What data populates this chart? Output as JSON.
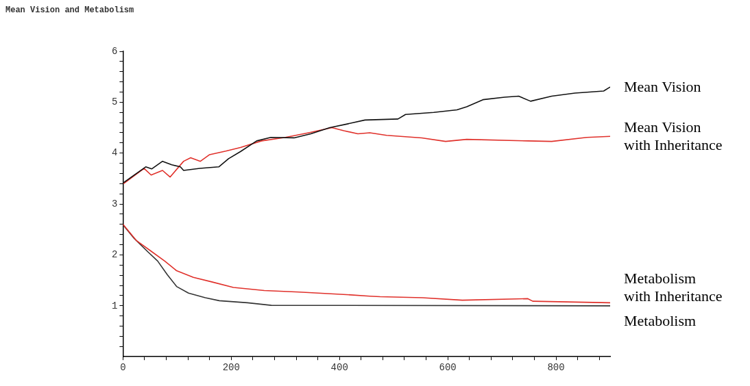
{
  "chart_data": {
    "type": "line",
    "title": "Mean Vision and Metabolism",
    "xlim": [
      0,
      900
    ],
    "xticks": [
      0,
      {
        "value": 40,
        "label": null
      },
      {
        "value": 80,
        "label": null
      },
      {
        "value": 120,
        "label": null
      },
      {
        "value": 160,
        "label": null
      },
      200,
      {
        "value": 240,
        "label": null
      },
      {
        "value": 280,
        "label": null
      },
      {
        "value": 320,
        "label": null
      },
      {
        "value": 360,
        "label": null
      },
      400,
      {
        "value": 440,
        "label": null
      },
      {
        "value": 480,
        "label": null
      },
      {
        "value": 520,
        "label": null
      },
      {
        "value": 560,
        "label": null
      },
      600,
      {
        "value": 640,
        "label": null
      },
      {
        "value": 680,
        "label": null
      },
      {
        "value": 720,
        "label": null
      },
      {
        "value": 760,
        "label": null
      },
      800,
      {
        "value": 840,
        "label": null
      },
      {
        "value": 880,
        "label": null
      }
    ],
    "ylim": [
      0,
      6
    ],
    "yticks": [
      {
        "value": 0.2,
        "label": null
      },
      {
        "value": 0.4,
        "label": null
      },
      {
        "value": 0.6,
        "label": null
      },
      {
        "value": 0.8,
        "label": null
      },
      1,
      {
        "value": 1.2,
        "label": null
      },
      {
        "value": 1.4,
        "label": null
      },
      {
        "value": 1.6,
        "label": null
      },
      {
        "value": 1.8,
        "label": null
      },
      2,
      {
        "value": 2.2,
        "label": null
      },
      {
        "value": 2.4,
        "label": null
      },
      {
        "value": 2.6,
        "label": null
      },
      {
        "value": 2.8,
        "label": null
      },
      3,
      {
        "value": 3.2,
        "label": null
      },
      {
        "value": 3.4,
        "label": null
      },
      {
        "value": 3.6,
        "label": null
      },
      {
        "value": 3.8,
        "label": null
      },
      4,
      {
        "value": 4.2,
        "label": null
      },
      {
        "value": 4.4,
        "label": null
      },
      {
        "value": 4.6,
        "label": null
      },
      {
        "value": 4.8,
        "label": null
      },
      5,
      {
        "value": 5.2,
        "label": null
      },
      {
        "value": 5.4,
        "label": null
      },
      {
        "value": 5.6,
        "label": null
      },
      {
        "value": 5.8,
        "label": null
      },
      6
    ],
    "grid": false,
    "legend": false,
    "marker": "none",
    "line_style": "solid",
    "series": [
      {
        "name": "Mean Vision",
        "color": "#111111",
        "x": [
          1,
          42,
          53,
          73,
          90,
          106,
          112,
          142,
          177,
          195,
          217,
          247,
          273,
          316,
          347,
          382,
          413,
          447,
          508,
          522,
          574,
          617,
          635,
          665,
          705,
          731,
          753,
          792,
          835,
          888,
          900
        ],
        "values": [
          3.42,
          3.73,
          3.69,
          3.84,
          3.77,
          3.73,
          3.66,
          3.7,
          3.73,
          3.89,
          4.03,
          4.24,
          4.31,
          4.3,
          4.38,
          4.5,
          4.57,
          4.65,
          4.67,
          4.76,
          4.8,
          4.85,
          4.91,
          5.05,
          5.1,
          5.12,
          5.02,
          5.12,
          5.18,
          5.22,
          5.3
        ]
      },
      {
        "name": "Mean Vision with Inheritance",
        "color": "#e0302a",
        "x": [
          1,
          39,
          52,
          73,
          87,
          112,
          125,
          143,
          160,
          190,
          217,
          256,
          300,
          343,
          386,
          408,
          434,
          456,
          487,
          552,
          596,
          635,
          748,
          792,
          857,
          900
        ],
        "values": [
          3.4,
          3.7,
          3.57,
          3.66,
          3.53,
          3.84,
          3.91,
          3.84,
          3.97,
          4.04,
          4.11,
          4.24,
          4.31,
          4.4,
          4.5,
          4.44,
          4.38,
          4.4,
          4.35,
          4.3,
          4.23,
          4.27,
          4.24,
          4.23,
          4.31,
          4.33
        ]
      },
      {
        "name": "Metabolism with Inheritance",
        "color": "#e0302a",
        "x": [
          0,
          25,
          51,
          77,
          99,
          130,
          164,
          204,
          261,
          326,
          413,
          456,
          475,
          553,
          627,
          748,
          757,
          900
        ],
        "values": [
          2.6,
          2.28,
          2.08,
          1.88,
          1.69,
          1.56,
          1.47,
          1.36,
          1.3,
          1.27,
          1.22,
          1.19,
          1.18,
          1.16,
          1.11,
          1.14,
          1.09,
          1.06
        ]
      },
      {
        "name": "Metabolism",
        "color": "#333333",
        "x": [
          0,
          21,
          47,
          64,
          82,
          99,
          121,
          152,
          178,
          230,
          274,
          900
        ],
        "values": [
          2.59,
          2.32,
          2.05,
          1.88,
          1.61,
          1.38,
          1.25,
          1.16,
          1.1,
          1.06,
          1.01,
          1.0
        ]
      }
    ]
  }
}
